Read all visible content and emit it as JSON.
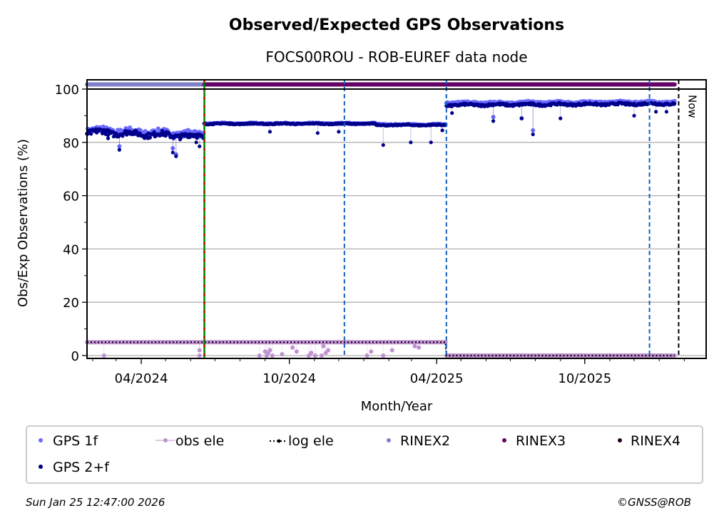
{
  "chart_data": {
    "type": "scatter",
    "title": "Observed/Expected GPS Observations",
    "subtitle": "FOCS00ROU - ROB-EUREF data node",
    "xlabel": "Month/Year",
    "ylabel": "Obs/Exp Observations (%)",
    "ylim": [
      0,
      100
    ],
    "yticks": [
      0,
      20,
      40,
      60,
      80,
      100
    ],
    "xlim": [
      "2024-01-25",
      "2026-02-28"
    ],
    "xticks": [
      {
        "date": "2024-04-01",
        "label": "04/2024"
      },
      {
        "date": "2024-10-01",
        "label": "10/2024"
      },
      {
        "date": "2025-04-01",
        "label": "04/2025"
      },
      {
        "date": "2025-10-01",
        "label": "10/2025"
      }
    ],
    "grid": "horizontal",
    "now_label": "Now",
    "now_date": "2026-01-25",
    "events": [
      {
        "date": "2024-06-18",
        "type": "receiver-antenna-change",
        "colors": [
          "#d00000",
          "#008000"
        ]
      },
      {
        "date": "2024-12-08",
        "type": "equipment-change",
        "colors": [
          "#1060c0"
        ]
      },
      {
        "date": "2025-04-13",
        "type": "equipment-change",
        "colors": [
          "#1060c0"
        ]
      },
      {
        "date": "2025-12-20",
        "type": "equipment-change",
        "colors": [
          "#1060c0"
        ]
      }
    ],
    "series": [
      {
        "name": "GPS 1f",
        "color": "#6a6aff",
        "segments": [
          {
            "start": "2024-01-25",
            "end": "2024-06-17",
            "level": 84.8,
            "noise": 1.0,
            "trend": -1.8
          },
          {
            "start": "2024-06-18",
            "end": "2025-01-15",
            "level": 87.1,
            "noise": 0.2,
            "trend": 0
          },
          {
            "start": "2025-01-16",
            "end": "2025-04-12",
            "level": 86.7,
            "noise": 0.2,
            "trend": 0
          },
          {
            "start": "2025-04-13",
            "end": "2026-01-20",
            "level": 94.9,
            "noise": 0.3,
            "trend": 0.3
          }
        ],
        "outliers": [
          [
            "2024-03-05",
            78.5
          ],
          [
            "2024-05-10",
            77.8
          ],
          [
            "2024-05-14",
            75.5
          ],
          [
            "2025-06-10",
            89.5
          ],
          [
            "2025-07-15",
            89.0
          ],
          [
            "2025-07-29",
            84.5
          ]
        ]
      },
      {
        "name": "GPS 2+f",
        "color": "#00008b",
        "segments": [
          {
            "start": "2024-01-25",
            "end": "2024-06-17",
            "level": 84.0,
            "noise": 1.0,
            "trend": -1.8
          },
          {
            "start": "2024-06-18",
            "end": "2025-01-15",
            "level": 87.0,
            "noise": 0.2,
            "trend": 0
          },
          {
            "start": "2025-01-16",
            "end": "2025-04-12",
            "level": 86.5,
            "noise": 0.2,
            "trend": 0
          },
          {
            "start": "2025-04-13",
            "end": "2026-01-20",
            "level": 94.0,
            "noise": 0.4,
            "trend": 0.5
          }
        ],
        "outliers": [
          [
            "2024-02-20",
            81.5
          ],
          [
            "2024-03-05",
            77.2
          ],
          [
            "2024-05-10",
            76.2
          ],
          [
            "2024-05-14",
            74.8
          ],
          [
            "2024-06-08",
            80.0
          ],
          [
            "2024-06-12",
            78.5
          ],
          [
            "2024-09-07",
            84.0
          ],
          [
            "2024-11-05",
            83.5
          ],
          [
            "2024-12-01",
            84.0
          ],
          [
            "2025-01-25",
            79.0
          ],
          [
            "2025-02-28",
            80.0
          ],
          [
            "2025-03-25",
            80.0
          ],
          [
            "2025-04-08",
            84.5
          ],
          [
            "2025-04-20",
            91.0
          ],
          [
            "2025-06-10",
            88.0
          ],
          [
            "2025-07-15",
            89.0
          ],
          [
            "2025-07-29",
            83.0
          ],
          [
            "2025-09-01",
            89.0
          ],
          [
            "2025-12-01",
            90.0
          ],
          [
            "2025-12-28",
            91.5
          ],
          [
            "2026-01-10",
            91.5
          ]
        ]
      },
      {
        "name": "obs ele",
        "color": "#c090d0",
        "segments": [
          {
            "start": "2024-01-25",
            "end": "2025-04-12",
            "level": 5.0,
            "noise": 0,
            "trend": 0
          },
          {
            "start": "2025-04-13",
            "end": "2026-01-20",
            "level": 0.0,
            "noise": 0,
            "trend": 0
          }
        ],
        "outliers": [
          [
            "2024-02-15",
            0
          ],
          [
            "2024-06-12",
            0
          ],
          [
            "2024-06-12",
            2
          ],
          [
            "2024-08-25",
            0
          ],
          [
            "2024-09-01",
            1.5
          ],
          [
            "2024-09-03",
            0
          ],
          [
            "2024-09-05",
            1
          ],
          [
            "2024-09-07",
            2
          ],
          [
            "2024-09-10",
            0
          ],
          [
            "2024-09-22",
            0.5
          ],
          [
            "2024-10-05",
            3
          ],
          [
            "2024-10-10",
            1.5
          ],
          [
            "2024-10-25",
            0
          ],
          [
            "2024-10-28",
            1
          ],
          [
            "2024-11-02",
            0
          ],
          [
            "2024-11-10",
            0
          ],
          [
            "2024-11-12",
            3.5
          ],
          [
            "2024-11-15",
            1
          ],
          [
            "2024-11-18",
            2
          ],
          [
            "2025-01-05",
            0
          ],
          [
            "2025-01-10",
            1.5
          ],
          [
            "2025-01-25",
            0
          ],
          [
            "2025-02-05",
            2
          ],
          [
            "2025-03-05",
            3.5
          ],
          [
            "2025-03-10",
            3
          ]
        ]
      },
      {
        "name": "log ele",
        "color": "#000000",
        "segments": [
          {
            "start": "2024-01-25",
            "end": "2025-04-12",
            "level": 5.0,
            "noise": 0,
            "trend": 0
          },
          {
            "start": "2025-04-13",
            "end": "2026-01-20",
            "level": 0.0,
            "noise": 0,
            "trend": 0
          }
        ],
        "outliers": []
      }
    ],
    "format_band": [
      {
        "name": "RINEX2",
        "color": "#8080c8",
        "start": "2024-01-25",
        "end": "2024-06-17"
      },
      {
        "name": "RINEX3",
        "color": "#660066",
        "start": "2024-06-18",
        "end": "2026-01-20"
      },
      {
        "name": "RINEX4",
        "color": "#200020",
        "start": null,
        "end": null
      }
    ],
    "legend": {
      "placement": "bottom",
      "entries": [
        "GPS 1f",
        "obs ele",
        "log ele",
        "RINEX2",
        "RINEX3",
        "RINEX4",
        "GPS 2+f"
      ]
    }
  },
  "footer": {
    "timestamp": "Sun Jan 25 12:47:00 2026",
    "copyright": "©GNSS@ROB"
  }
}
